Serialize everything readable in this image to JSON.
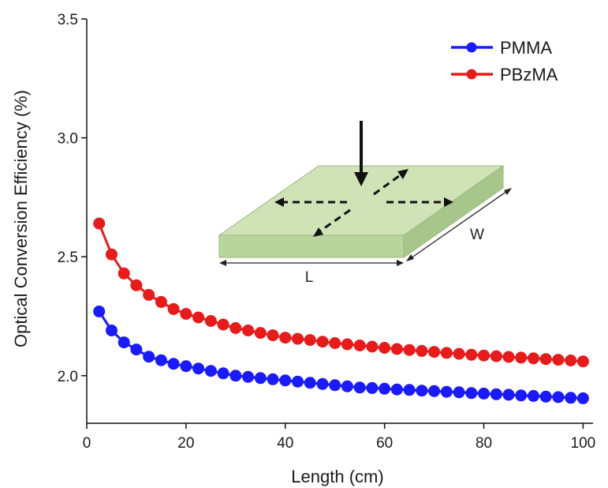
{
  "chart_data": {
    "type": "line",
    "title": "",
    "xlabel": "Length (cm)",
    "ylabel": "Optical Conversion Efficiency (%)",
    "xlim": [
      0,
      102
    ],
    "ylim": [
      1.8,
      3.5
    ],
    "xticks": [
      0,
      20,
      40,
      60,
      80,
      100
    ],
    "yticks": [
      2.0,
      2.5,
      3.0,
      3.5
    ],
    "ytick_labels": [
      "2.0",
      "2.5",
      "3.0",
      "3.5"
    ],
    "grid": false,
    "legend_position": "top-right",
    "x": [
      2.5,
      5,
      7.5,
      10,
      12.5,
      15,
      17.5,
      20,
      22.5,
      25,
      27.5,
      30,
      32.5,
      35,
      37.5,
      40,
      42.5,
      45,
      47.5,
      50,
      52.5,
      55,
      57.5,
      60,
      62.5,
      65,
      67.5,
      70,
      72.5,
      75,
      77.5,
      80,
      82.5,
      85,
      87.5,
      90,
      92.5,
      95,
      97.5,
      100
    ],
    "series": [
      {
        "name": "PMMA",
        "color": "#1a1aff",
        "values": [
          2.27,
          2.19,
          2.14,
          2.11,
          2.08,
          2.065,
          2.05,
          2.04,
          2.03,
          2.02,
          2.01,
          2.0,
          1.995,
          1.99,
          1.985,
          1.98,
          1.975,
          1.97,
          1.965,
          1.96,
          1.955,
          1.95,
          1.948,
          1.945,
          1.942,
          1.94,
          1.937,
          1.935,
          1.932,
          1.93,
          1.927,
          1.925,
          1.922,
          1.92,
          1.917,
          1.915,
          1.912,
          1.91,
          1.907,
          1.905
        ]
      },
      {
        "name": "PBzMA",
        "color": "#e81a1a",
        "values": [
          2.64,
          2.51,
          2.43,
          2.38,
          2.34,
          2.31,
          2.28,
          2.26,
          2.245,
          2.23,
          2.215,
          2.2,
          2.19,
          2.18,
          2.17,
          2.16,
          2.155,
          2.15,
          2.143,
          2.137,
          2.132,
          2.127,
          2.122,
          2.117,
          2.112,
          2.108,
          2.104,
          2.1,
          2.096,
          2.092,
          2.088,
          2.085,
          2.082,
          2.079,
          2.076,
          2.073,
          2.07,
          2.067,
          2.064,
          2.06
        ]
      }
    ],
    "inset": {
      "label_length": "L",
      "label_width": "W",
      "slab_color": "#cfe3b7"
    }
  }
}
